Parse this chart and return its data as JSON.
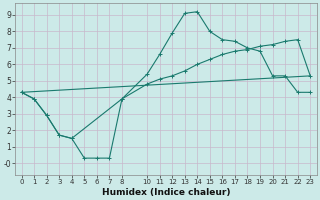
{
  "xlabel": "Humidex (Indice chaleur)",
  "bg_color": "#cceae8",
  "grid_color": "#c8b8cc",
  "line_color": "#1a7a6e",
  "xlim": [
    -0.5,
    23.5
  ],
  "ylim": [
    -0.7,
    9.7
  ],
  "xticks": [
    0,
    1,
    2,
    3,
    4,
    5,
    6,
    7,
    8,
    10,
    11,
    12,
    13,
    14,
    15,
    16,
    17,
    18,
    19,
    20,
    21,
    22,
    23
  ],
  "yticks": [
    0,
    1,
    2,
    3,
    4,
    5,
    6,
    7,
    8,
    9
  ],
  "ytick_labels": [
    "-0",
    "1",
    "2",
    "3",
    "4",
    "5",
    "6",
    "7",
    "8",
    "9"
  ],
  "line1_x": [
    0,
    1,
    2,
    3,
    4,
    5,
    6,
    7,
    8,
    10,
    11,
    12,
    13,
    14,
    15,
    16,
    17,
    18,
    19,
    20,
    21,
    22,
    23
  ],
  "line1_y": [
    4.3,
    3.9,
    2.9,
    1.7,
    1.5,
    0.3,
    0.3,
    0.3,
    3.9,
    5.4,
    6.6,
    7.9,
    9.1,
    9.2,
    8.0,
    7.5,
    7.4,
    7.0,
    6.8,
    5.3,
    5.3,
    4.3,
    4.3
  ],
  "line2_x": [
    0,
    1,
    2,
    3,
    4,
    8,
    10,
    11,
    12,
    13,
    14,
    15,
    16,
    17,
    18,
    19,
    20,
    21,
    22,
    23
  ],
  "line2_y": [
    4.3,
    3.9,
    2.9,
    1.7,
    1.5,
    3.9,
    4.8,
    5.1,
    5.3,
    5.6,
    6.0,
    6.3,
    6.6,
    6.8,
    6.9,
    7.1,
    7.2,
    7.4,
    7.5,
    5.3
  ],
  "line3_x": [
    0,
    23
  ],
  "line3_y": [
    4.3,
    5.3
  ]
}
